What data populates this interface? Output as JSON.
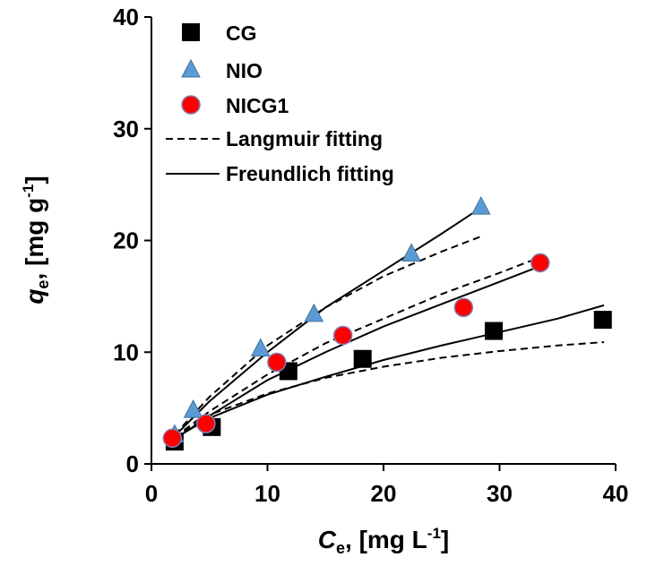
{
  "chart_data": {
    "type": "scatter",
    "xlabel": {
      "main": "C",
      "sub": "e",
      "units": ", [mg L",
      "sup": "-1",
      "close": "]"
    },
    "ylabel": {
      "main": "q",
      "sub": "e",
      "units": ", [mg g",
      "sup": "-1",
      "close": "]"
    },
    "xlim": [
      0,
      40
    ],
    "ylim": [
      0,
      40
    ],
    "xticks": [
      0,
      10,
      20,
      30,
      40
    ],
    "yticks": [
      0,
      10,
      20,
      30,
      40
    ],
    "grid": false,
    "legend_position": "top-left",
    "series": [
      {
        "name": "CG",
        "marker": "square",
        "color": "#000000",
        "x": [
          2.0,
          5.2,
          11.8,
          18.2,
          29.5,
          38.9
        ],
        "y": [
          2.0,
          3.3,
          8.3,
          9.4,
          11.9,
          12.9
        ]
      },
      {
        "name": "NIO",
        "marker": "triangle",
        "color": "#5b9bd5",
        "x": [
          2.0,
          3.6,
          9.4,
          14.0,
          22.4,
          28.4
        ],
        "y": [
          2.6,
          4.8,
          10.3,
          13.4,
          18.8,
          23.0
        ]
      },
      {
        "name": "NICG1",
        "marker": "circle",
        "color": "#ff0000",
        "x": [
          1.8,
          4.7,
          10.8,
          16.5,
          26.9,
          33.5
        ],
        "y": [
          2.3,
          3.6,
          9.1,
          11.5,
          14.0,
          18.0
        ]
      }
    ],
    "fits": [
      {
        "name": "Langmuir fitting",
        "style": "dashed",
        "for": "CG",
        "x": [
          2,
          5,
          10,
          15,
          20,
          25,
          30,
          35,
          39
        ],
        "y": [
          2.3,
          4.4,
          6.3,
          7.7,
          8.7,
          9.5,
          10.1,
          10.6,
          10.9
        ]
      },
      {
        "name": "Freundlich fitting",
        "style": "solid",
        "for": "CG",
        "x": [
          2,
          5,
          10,
          15,
          20,
          25,
          30,
          35,
          39
        ],
        "y": [
          2.3,
          4.1,
          6.2,
          7.8,
          9.3,
          10.6,
          11.8,
          13.0,
          14.2
        ]
      },
      {
        "name": "Langmuir fitting",
        "style": "dashed",
        "for": "NIO",
        "x": [
          2,
          5,
          10,
          15,
          20,
          25,
          28.5
        ],
        "y": [
          2.6,
          6.0,
          10.6,
          14.0,
          16.8,
          19.0,
          20.4
        ]
      },
      {
        "name": "Freundlich fitting",
        "style": "solid",
        "for": "NIO",
        "x": [
          2,
          5,
          10,
          15,
          20,
          25,
          28.5
        ],
        "y": [
          2.5,
          5.6,
          10.0,
          14.0,
          17.3,
          20.6,
          23.0
        ]
      },
      {
        "name": "Langmuir fitting",
        "style": "dashed",
        "for": "NICG1",
        "x": [
          2,
          5,
          10,
          15,
          20,
          25,
          30,
          34
        ],
        "y": [
          2.4,
          4.7,
          8.0,
          10.8,
          13.0,
          15.2,
          17.1,
          18.7
        ]
      },
      {
        "name": "Freundlich fitting",
        "style": "solid",
        "for": "NICG1",
        "x": [
          2,
          5,
          10,
          15,
          20,
          25,
          30,
          34
        ],
        "y": [
          2.2,
          4.3,
          7.5,
          10.0,
          12.3,
          14.3,
          16.3,
          17.9
        ]
      }
    ],
    "legend": [
      {
        "label": "CG",
        "kind": "square"
      },
      {
        "label": "NIO",
        "kind": "triangle"
      },
      {
        "label": "NICG1",
        "kind": "circle"
      },
      {
        "label": "Langmuir fitting",
        "kind": "dashed"
      },
      {
        "label": "Freundlich fitting",
        "kind": "solid"
      }
    ]
  }
}
